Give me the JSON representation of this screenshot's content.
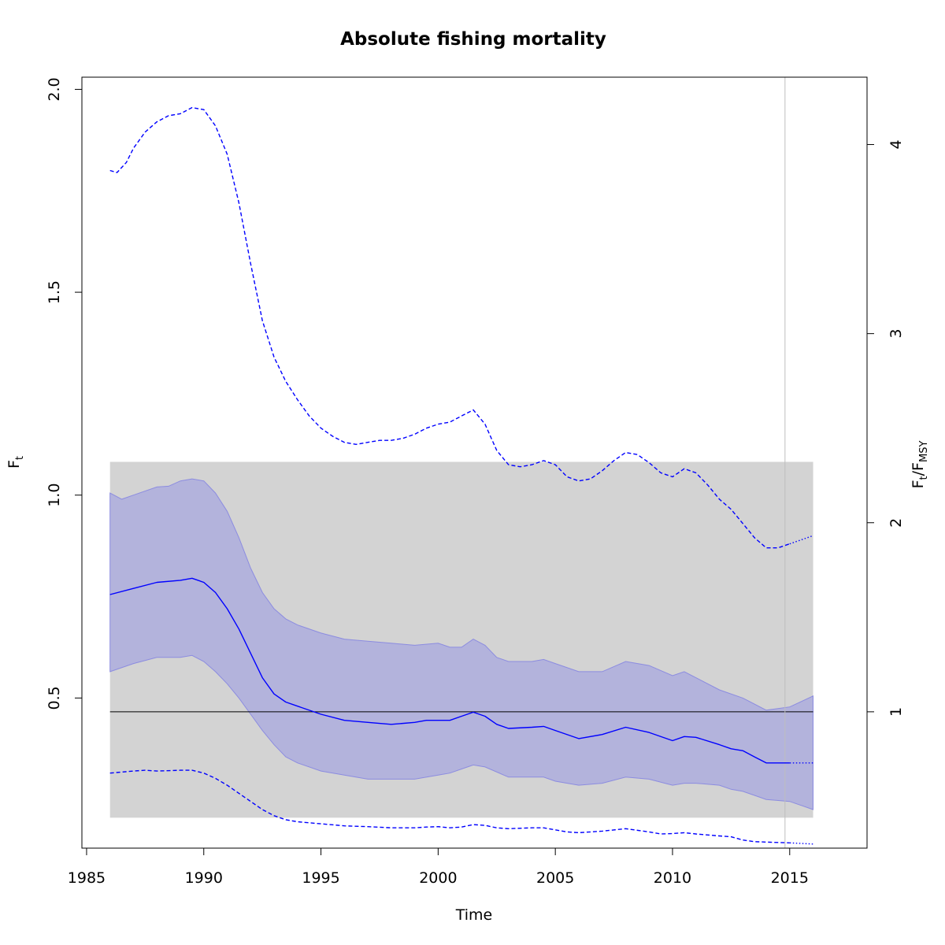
{
  "chart_data": {
    "type": "line",
    "title": "Absolute fishing mortality",
    "xlabel": "Time",
    "ylabel": {
      "base": "F",
      "sub": "t"
    },
    "y2label": {
      "base1": "F",
      "sub1": "t",
      "sep": "/",
      "base2": "F",
      "sub2": "MSY"
    },
    "xlim": [
      1984.8,
      2018.3
    ],
    "ylim": [
      0.13,
      2.03
    ],
    "x_ticks": [
      1985,
      1990,
      1995,
      2000,
      2005,
      2010,
      2015
    ],
    "y_ticks": [
      0.5,
      1.0,
      1.5,
      2.0
    ],
    "y_tick_labels": [
      "0.5",
      "1.0",
      "1.5",
      "2.0"
    ],
    "y2_ticks": [
      1,
      2,
      3,
      4
    ],
    "y2_tick_labels": [
      "1",
      "2",
      "3",
      "4"
    ],
    "fmsy": 0.466,
    "msy_region": {
      "x": [
        1986.0,
        2016.0
      ],
      "y": [
        0.205,
        1.082
      ]
    },
    "vline_x": 2014.8,
    "colors": {
      "line": "#0000ff",
      "ci_fill": "#b3b3dc",
      "region": "#d3d3d3",
      "ref": "#000000",
      "vline": "#bebebe"
    },
    "series": [
      {
        "role": "estimate",
        "style": "solid",
        "forecast_from": 2015.0,
        "x": [
          1986.0,
          1987.0,
          1988.0,
          1989.0,
          1989.5,
          1990.0,
          1990.5,
          1991.0,
          1991.5,
          1992.0,
          1992.5,
          1993.0,
          1993.5,
          1994.0,
          1995.0,
          1996.0,
          1997.0,
          1998.0,
          1999.0,
          1999.5,
          2000.0,
          2000.5,
          2001.0,
          2001.5,
          2002.0,
          2002.5,
          2003.0,
          2004.0,
          2004.5,
          2005.0,
          2006.0,
          2007.0,
          2008.0,
          2009.0,
          2010.0,
          2010.5,
          2011.0,
          2012.0,
          2012.5,
          2013.0,
          2013.5,
          2014.0,
          2015.0,
          2016.0
        ],
        "y": [
          0.755,
          0.77,
          0.785,
          0.79,
          0.795,
          0.785,
          0.76,
          0.72,
          0.67,
          0.61,
          0.55,
          0.51,
          0.49,
          0.48,
          0.46,
          0.445,
          0.44,
          0.435,
          0.44,
          0.445,
          0.445,
          0.445,
          0.455,
          0.465,
          0.455,
          0.435,
          0.425,
          0.428,
          0.43,
          0.42,
          0.4,
          0.41,
          0.428,
          0.415,
          0.395,
          0.405,
          0.403,
          0.385,
          0.375,
          0.37,
          0.355,
          0.34,
          0.34,
          0.34
        ]
      },
      {
        "role": "ci_upper",
        "style": "shaded",
        "x": [
          1986.0,
          1986.5,
          1987.0,
          1988.0,
          1988.5,
          1989.0,
          1989.5,
          1990.0,
          1990.5,
          1991.0,
          1991.5,
          1992.0,
          1992.5,
          1993.0,
          1993.5,
          1994.0,
          1995.0,
          1996.0,
          1997.0,
          1998.0,
          1999.0,
          2000.0,
          2000.5,
          2001.0,
          2001.5,
          2002.0,
          2002.5,
          2003.0,
          2004.0,
          2004.5,
          2005.0,
          2006.0,
          2007.0,
          2008.0,
          2009.0,
          2010.0,
          2010.5,
          2011.0,
          2012.0,
          2013.0,
          2014.0,
          2015.0,
          2016.0
        ],
        "y": [
          1.005,
          0.99,
          1.0,
          1.02,
          1.022,
          1.035,
          1.04,
          1.035,
          1.005,
          0.96,
          0.895,
          0.82,
          0.76,
          0.72,
          0.695,
          0.68,
          0.66,
          0.645,
          0.64,
          0.635,
          0.63,
          0.635,
          0.625,
          0.625,
          0.645,
          0.63,
          0.6,
          0.59,
          0.59,
          0.595,
          0.585,
          0.565,
          0.565,
          0.59,
          0.58,
          0.555,
          0.565,
          0.55,
          0.52,
          0.5,
          0.47,
          0.478,
          0.505
        ]
      },
      {
        "role": "ci_lower",
        "style": "shaded",
        "x": [
          1986.0,
          1987.0,
          1988.0,
          1989.0,
          1989.5,
          1990.0,
          1990.5,
          1991.0,
          1991.5,
          1992.0,
          1992.5,
          1993.0,
          1993.5,
          1994.0,
          1995.0,
          1996.0,
          1997.0,
          1998.0,
          1999.0,
          2000.0,
          2000.5,
          2001.0,
          2001.5,
          2002.0,
          2003.0,
          2004.0,
          2004.5,
          2005.0,
          2006.0,
          2007.0,
          2008.0,
          2009.0,
          2010.0,
          2010.5,
          2011.0,
          2012.0,
          2012.5,
          2013.0,
          2013.5,
          2014.0,
          2015.0,
          2016.0
        ],
        "y": [
          0.565,
          0.585,
          0.6,
          0.6,
          0.605,
          0.59,
          0.565,
          0.535,
          0.5,
          0.46,
          0.42,
          0.385,
          0.355,
          0.34,
          0.32,
          0.31,
          0.3,
          0.3,
          0.3,
          0.31,
          0.315,
          0.325,
          0.335,
          0.33,
          0.305,
          0.305,
          0.305,
          0.295,
          0.285,
          0.29,
          0.305,
          0.3,
          0.285,
          0.29,
          0.29,
          0.285,
          0.275,
          0.27,
          0.26,
          0.25,
          0.245,
          0.225
        ]
      },
      {
        "role": "outer_upper",
        "style": "dashed",
        "forecast_from": 2015.0,
        "x": [
          1986.0,
          1986.3,
          1986.7,
          1987.0,
          1987.5,
          1988.0,
          1988.5,
          1989.0,
          1989.5,
          1990.0,
          1990.5,
          1991.0,
          1991.5,
          1992.0,
          1992.5,
          1993.0,
          1993.5,
          1994.0,
          1994.5,
          1995.0,
          1995.5,
          1996.0,
          1996.5,
          1997.0,
          1997.5,
          1998.0,
          1998.5,
          1999.0,
          1999.5,
          2000.0,
          2000.5,
          2001.0,
          2001.5,
          2002.0,
          2002.5,
          2003.0,
          2003.5,
          2004.0,
          2004.5,
          2005.0,
          2005.5,
          2006.0,
          2006.5,
          2007.0,
          2007.5,
          2008.0,
          2008.5,
          2009.0,
          2009.5,
          2010.0,
          2010.5,
          2011.0,
          2011.5,
          2012.0,
          2012.5,
          2013.0,
          2013.5,
          2014.0,
          2014.5,
          2015.0,
          2015.5,
          2016.0
        ],
        "y": [
          1.8,
          1.795,
          1.82,
          1.855,
          1.895,
          1.92,
          1.935,
          1.94,
          1.955,
          1.95,
          1.91,
          1.84,
          1.72,
          1.57,
          1.43,
          1.34,
          1.28,
          1.235,
          1.195,
          1.165,
          1.145,
          1.13,
          1.125,
          1.13,
          1.135,
          1.135,
          1.14,
          1.15,
          1.165,
          1.175,
          1.18,
          1.195,
          1.21,
          1.175,
          1.11,
          1.075,
          1.07,
          1.075,
          1.085,
          1.075,
          1.045,
          1.035,
          1.04,
          1.06,
          1.085,
          1.105,
          1.1,
          1.08,
          1.055,
          1.045,
          1.065,
          1.055,
          1.025,
          0.99,
          0.965,
          0.93,
          0.895,
          0.87,
          0.87,
          0.88,
          0.89,
          0.9
        ]
      },
      {
        "role": "outer_lower",
        "style": "dashed",
        "forecast_from": 2015.0,
        "x": [
          1986.0,
          1987.0,
          1987.5,
          1988.0,
          1989.0,
          1989.5,
          1990.0,
          1990.5,
          1991.0,
          1991.5,
          1992.0,
          1992.5,
          1993.0,
          1993.5,
          1994.0,
          1995.0,
          1996.0,
          1997.0,
          1998.0,
          1999.0,
          1999.5,
          2000.0,
          2000.5,
          2001.0,
          2001.5,
          2002.0,
          2002.5,
          2003.0,
          2004.0,
          2004.5,
          2005.0,
          2005.5,
          2006.0,
          2007.0,
          2008.0,
          2009.0,
          2009.5,
          2010.0,
          2010.5,
          2011.0,
          2012.0,
          2012.5,
          2013.0,
          2013.5,
          2014.0,
          2015.0,
          2016.0
        ],
        "y": [
          0.315,
          0.32,
          0.322,
          0.32,
          0.322,
          0.322,
          0.315,
          0.302,
          0.285,
          0.265,
          0.245,
          0.225,
          0.21,
          0.2,
          0.195,
          0.19,
          0.185,
          0.183,
          0.18,
          0.18,
          0.182,
          0.183,
          0.18,
          0.182,
          0.188,
          0.186,
          0.18,
          0.178,
          0.18,
          0.18,
          0.175,
          0.17,
          0.168,
          0.172,
          0.178,
          0.17,
          0.165,
          0.166,
          0.168,
          0.165,
          0.16,
          0.158,
          0.15,
          0.146,
          0.145,
          0.143,
          0.14
        ]
      }
    ]
  }
}
